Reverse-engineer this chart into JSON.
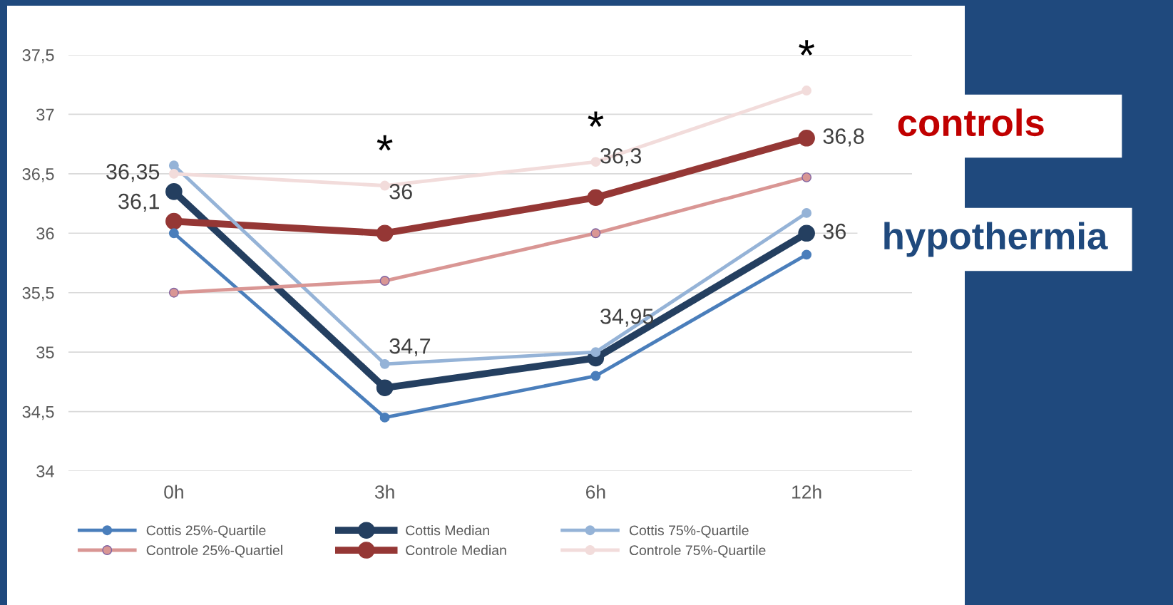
{
  "chart_data": {
    "type": "line",
    "categories": [
      "0h",
      "3h",
      "6h",
      "12h"
    ],
    "series": [
      {
        "name": "Cottis 25%-Quartile",
        "color": "#4a7ebb",
        "values": [
          36.0,
          34.45,
          34.8,
          35.82
        ]
      },
      {
        "name": "Cottis Median",
        "color": "#243f60",
        "values": [
          36.35,
          34.7,
          34.95,
          36.0
        ],
        "value_labels": [
          "36,35",
          "34,7",
          "34,95",
          "36"
        ]
      },
      {
        "name": "Cottis 75%-Quartile",
        "color": "#95b3d7",
        "values": [
          36.57,
          34.9,
          35.0,
          36.17
        ]
      },
      {
        "name": "Controle 25%-Quartiel",
        "color": "#d99694",
        "values": [
          35.5,
          35.6,
          36.0,
          36.47
        ]
      },
      {
        "name": "Controle Median",
        "color": "#953735",
        "values": [
          36.1,
          36.0,
          36.3,
          36.8
        ],
        "value_labels": [
          "36,1",
          "36",
          "36,3",
          "36,8"
        ]
      },
      {
        "name": "Controle 75%-Quartile",
        "color": "#f2dcdb",
        "values": [
          36.5,
          36.4,
          36.6,
          37.2
        ]
      }
    ],
    "ylim": [
      34,
      37.5
    ],
    "yticks": [
      {
        "value": 34,
        "label": "34"
      },
      {
        "value": 34.5,
        "label": "34,5"
      },
      {
        "value": 35,
        "label": "35"
      },
      {
        "value": 35.5,
        "label": "35,5"
      },
      {
        "value": 36,
        "label": "36"
      },
      {
        "value": 36.5,
        "label": "36,5"
      },
      {
        "value": 37,
        "label": "37"
      },
      {
        "value": 37.5,
        "label": "37,5"
      }
    ],
    "grid": "y",
    "legend": "bottom",
    "marker": "circle",
    "line_style": "solid",
    "annotations": [
      "*",
      "*",
      "*",
      "controls",
      "hypothermia"
    ]
  }
}
